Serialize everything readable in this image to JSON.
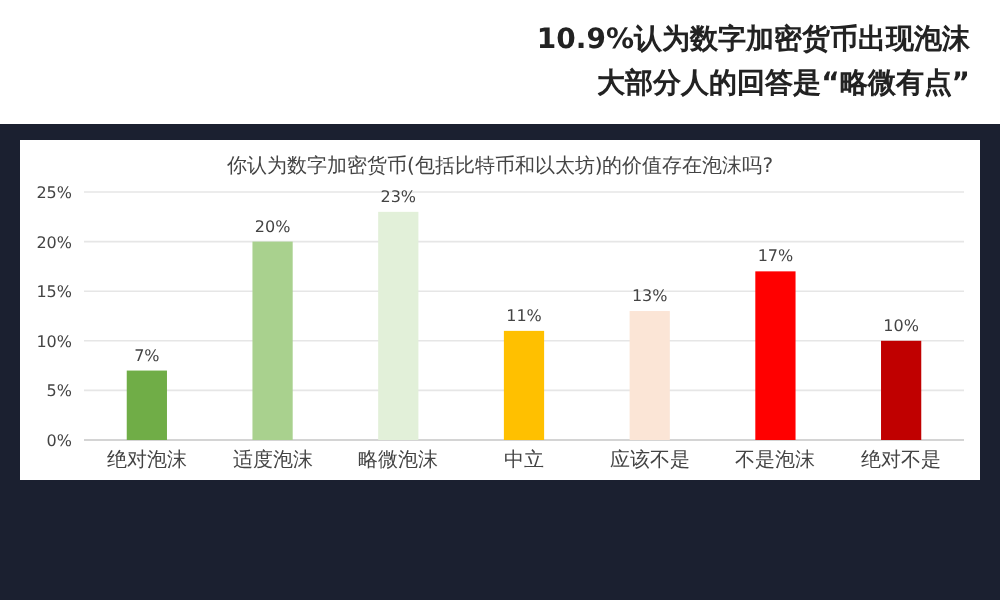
{
  "chart_data": {
    "type": "bar",
    "title": "10.9%认为数字加密货币出现泡沫",
    "subtitle": "大部分人的回答是“略微有点”",
    "annotations": [
      "你认为数字加密货币(包括比特币和以太坊)的价值存在泡沫吗?"
    ],
    "categories": [
      "绝对泡沫",
      "适度泡沫",
      "略微泡沫",
      "中立",
      "应该不是",
      "不是泡沫",
      "绝对不是"
    ],
    "values": [
      7,
      20,
      23,
      11,
      13,
      17,
      10
    ],
    "value_labels": [
      "7%",
      "20%",
      "23%",
      "11%",
      "13%",
      "17%",
      "10%"
    ],
    "colors": [
      "#70ad47",
      "#a9d18e",
      "#e2f0d9",
      "#ffc000",
      "#fbe5d6",
      "#ff0000",
      "#c00000"
    ],
    "ylim": [
      0,
      25
    ],
    "yticks": [
      {
        "value": 0,
        "label": "0%"
      },
      {
        "value": 5,
        "label": "5%"
      },
      {
        "value": 10,
        "label": "10%"
      },
      {
        "value": 15,
        "label": "15%"
      },
      {
        "value": 20,
        "label": "20%"
      },
      {
        "value": 25,
        "label": "25%"
      }
    ],
    "grid": "y"
  }
}
